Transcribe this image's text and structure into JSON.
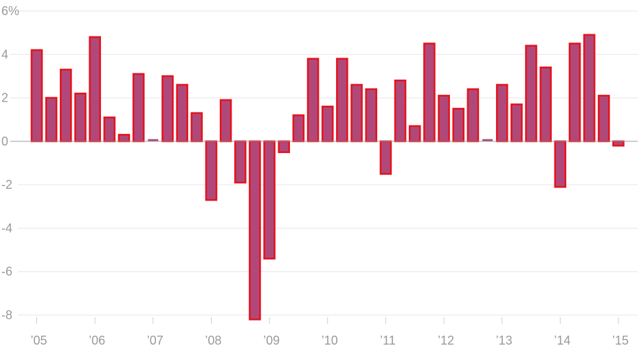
{
  "chart_data": {
    "type": "bar",
    "y_unit": "%",
    "ylim": [
      -8.5,
      6
    ],
    "y_ticks": [
      6,
      4,
      2,
      0,
      -2,
      -4,
      -6,
      -8
    ],
    "y_tick_labels": [
      "6%",
      "4",
      "2",
      "0",
      "-2",
      "-4",
      "-6",
      "-8"
    ],
    "x_tick_labels": [
      "’05",
      "’06",
      "’07",
      "’08",
      "’09",
      "’10",
      "’11",
      "’12",
      "’13",
      "’14",
      "’15"
    ],
    "bar_fill": "#b0497a",
    "bar_stroke": "#e3141e",
    "grid": true,
    "categories": [
      "2005 Q1",
      "2005 Q2",
      "2005 Q3",
      "2005 Q4",
      "2006 Q1",
      "2006 Q2",
      "2006 Q3",
      "2006 Q4",
      "2007 Q1",
      "2007 Q2",
      "2007 Q3",
      "2007 Q4",
      "2008 Q1",
      "2008 Q2",
      "2008 Q3",
      "2008 Q4",
      "2009 Q1",
      "2009 Q2",
      "2009 Q3",
      "2009 Q4",
      "2010 Q1",
      "2010 Q2",
      "2010 Q3",
      "2010 Q4",
      "2011 Q1",
      "2011 Q2",
      "2011 Q3",
      "2011 Q4",
      "2012 Q1",
      "2012 Q2",
      "2012 Q3",
      "2012 Q4",
      "2013 Q1",
      "2013 Q2",
      "2013 Q3",
      "2013 Q4",
      "2014 Q1",
      "2014 Q2",
      "2014 Q3",
      "2014 Q4",
      "2015 Q1"
    ],
    "values": [
      4.2,
      2.0,
      3.3,
      2.2,
      4.8,
      1.1,
      0.3,
      3.1,
      0.1,
      3.0,
      2.6,
      1.3,
      -2.7,
      1.9,
      -1.9,
      -8.2,
      -5.4,
      -0.5,
      1.2,
      3.8,
      1.6,
      3.8,
      2.6,
      2.4,
      -1.5,
      2.8,
      0.7,
      4.5,
      2.1,
      1.5,
      2.4,
      0.1,
      2.6,
      1.7,
      4.4,
      3.4,
      -2.1,
      4.5,
      4.9,
      2.1,
      -0.2
    ]
  }
}
